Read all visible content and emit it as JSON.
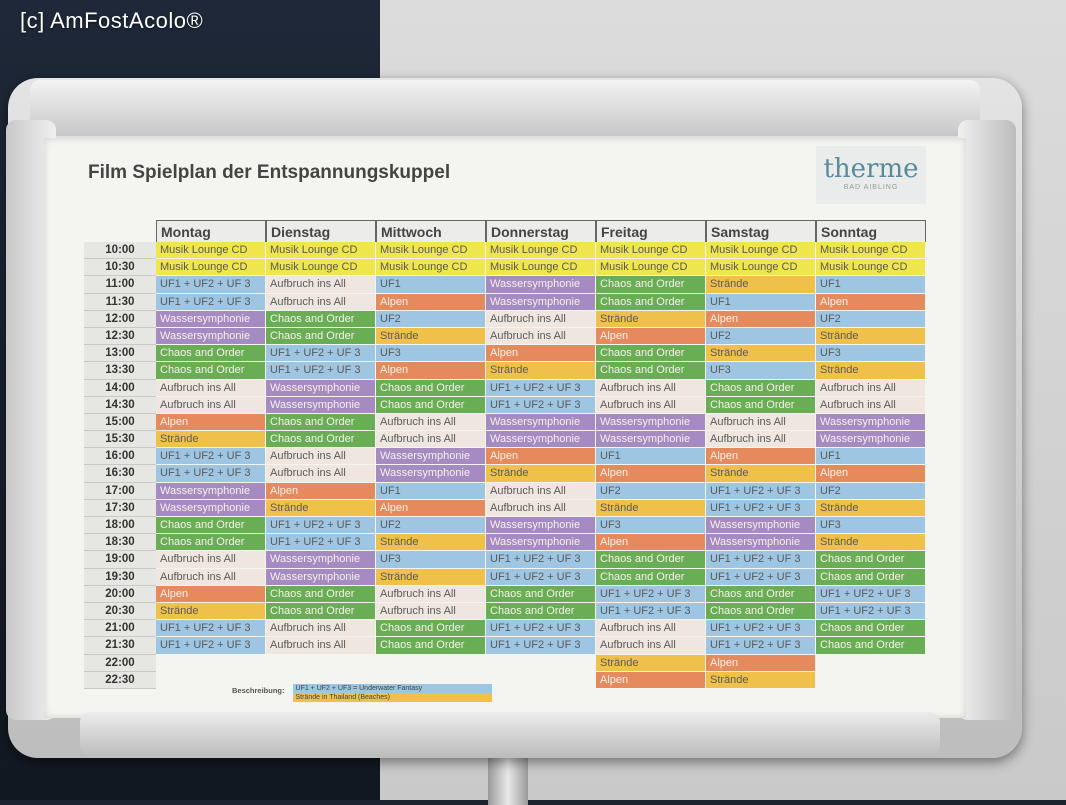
{
  "watermark": "[c] AmFostAcolo®",
  "sign": {
    "title": "Film Spielplan der Entspannungskuppel",
    "logo": "therme",
    "logo_sub": "BAD AIBLING"
  },
  "colors": {
    "yellow": "#eee64c",
    "blue": "#9ec6e2",
    "white": "#efe7df",
    "purple": "#a58bc2",
    "green": "#69ad55",
    "orange": "#e58a5c",
    "gold": "#f0c14a"
  },
  "days": [
    "Montag",
    "Dienstag",
    "Mittwoch",
    "Donnerstag",
    "Freitag",
    "Samstag",
    "Sonntag"
  ],
  "times": [
    "10:00",
    "10:30",
    "11:00",
    "11:30",
    "12:00",
    "12:30",
    "13:00",
    "13:30",
    "14:00",
    "14:30",
    "15:00",
    "15:30",
    "16:00",
    "16:30",
    "17:00",
    "17:30",
    "18:00",
    "18:30",
    "19:00",
    "19:30",
    "20:00",
    "20:30",
    "21:00",
    "21:30",
    "22:00",
    "22:30"
  ],
  "schedule": [
    [
      "Musik Lounge CD",
      "Musik Lounge CD",
      "Musik Lounge CD",
      "Musik Lounge CD",
      "Musik Lounge CD",
      "Musik Lounge CD",
      "Musik Lounge CD"
    ],
    [
      "Musik Lounge CD",
      "Musik Lounge CD",
      "Musik Lounge CD",
      "Musik Lounge CD",
      "Musik Lounge CD",
      "Musik Lounge CD",
      "Musik Lounge CD"
    ],
    [
      "UF1 + UF2 + UF 3",
      "Aufbruch ins All",
      "UF1",
      "Wassersymphonie",
      "Chaos and Order",
      "Strände",
      "UF1"
    ],
    [
      "UF1 + UF2 + UF 3",
      "Aufbruch ins All",
      "Alpen",
      "Wassersymphonie",
      "Chaos and Order",
      "UF1",
      "Alpen"
    ],
    [
      "Wassersymphonie",
      "Chaos and Order",
      "UF2",
      "Aufbruch ins All",
      "Strände",
      "Alpen",
      "UF2"
    ],
    [
      "Wassersymphonie",
      "Chaos and Order",
      "Strände",
      "Aufbruch ins All",
      "Alpen",
      "UF2",
      "Strände"
    ],
    [
      "Chaos and Order",
      "UF1 + UF2 + UF 3",
      "UF3",
      "Alpen",
      "Chaos and Order",
      "Strände",
      "UF3"
    ],
    [
      "Chaos and Order",
      "UF1 + UF2 + UF 3",
      "Alpen",
      "Strände",
      "Chaos and Order",
      "UF3",
      "Strände"
    ],
    [
      "Aufbruch ins All",
      "Wassersymphonie",
      "Chaos and Order",
      "UF1 + UF2 + UF 3",
      "Aufbruch ins All",
      "Chaos and Order",
      "Aufbruch ins All"
    ],
    [
      "Aufbruch ins All",
      "Wassersymphonie",
      "Chaos and Order",
      "UF1 + UF2 + UF 3",
      "Aufbruch ins All",
      "Chaos and Order",
      "Aufbruch ins All"
    ],
    [
      "Alpen",
      "Chaos and Order",
      "Aufbruch ins All",
      "Wassersymphonie",
      "Wassersymphonie",
      "Aufbruch ins All",
      "Wassersymphonie"
    ],
    [
      "Strände",
      "Chaos and Order",
      "Aufbruch ins All",
      "Wassersymphonie",
      "Wassersymphonie",
      "Aufbruch ins All",
      "Wassersymphonie"
    ],
    [
      "UF1 + UF2 + UF 3",
      "Aufbruch ins All",
      "Wassersymphonie",
      "Alpen",
      "UF1",
      "Alpen",
      "UF1"
    ],
    [
      "UF1 + UF2 + UF 3",
      "Aufbruch ins All",
      "Wassersymphonie",
      "Strände",
      "Alpen",
      "Strände",
      "Alpen"
    ],
    [
      "Wassersymphonie",
      "Alpen",
      "UF1",
      "Aufbruch ins All",
      "UF2",
      "UF1 + UF2 + UF 3",
      "UF2"
    ],
    [
      "Wassersymphonie",
      "Strände",
      "Alpen",
      "Aufbruch ins All",
      "Strände",
      "UF1 + UF2 + UF 3",
      "Strände"
    ],
    [
      "Chaos and Order",
      "UF1 + UF2 + UF 3",
      "UF2",
      "Wassersymphonie",
      "UF3",
      "Wassersymphonie",
      "UF3"
    ],
    [
      "Chaos and Order",
      "UF1 + UF2 + UF 3",
      "Strände",
      "Wassersymphonie",
      "Alpen",
      "Wassersymphonie",
      "Strände"
    ],
    [
      "Aufbruch ins All",
      "Wassersymphonie",
      "UF3",
      "UF1 + UF2 + UF 3",
      "Chaos and Order",
      "UF1 + UF2 + UF 3",
      "Chaos and Order"
    ],
    [
      "Aufbruch ins All",
      "Wassersymphonie",
      "Strände",
      "UF1 + UF2 + UF 3",
      "Chaos and Order",
      "UF1 + UF2 + UF 3",
      "Chaos and Order"
    ],
    [
      "Alpen",
      "Chaos and Order",
      "Aufbruch ins All",
      "Chaos and Order",
      "UF1 + UF2 + UF 3",
      "Chaos and Order",
      "UF1 + UF2 + UF 3"
    ],
    [
      "Strände",
      "Chaos and Order",
      "Aufbruch ins All",
      "Chaos and Order",
      "UF1 + UF2 + UF 3",
      "Chaos and Order",
      "UF1 + UF2 + UF 3"
    ],
    [
      "UF1 + UF2 + UF 3",
      "Aufbruch ins All",
      "Chaos and Order",
      "UF1 + UF2 + UF 3",
      "Aufbruch ins All",
      "UF1 + UF2 + UF 3",
      "Chaos and Order"
    ],
    [
      "UF1 + UF2 + UF 3",
      "Aufbruch ins All",
      "Chaos and Order",
      "UF1 + UF2 + UF 3",
      "Aufbruch ins All",
      "UF1 + UF2 + UF 3",
      "Chaos and Order"
    ],
    [
      "",
      "",
      "",
      "",
      "Strände",
      "Alpen",
      ""
    ],
    [
      "",
      "",
      "",
      "",
      "Alpen",
      "Strände",
      ""
    ]
  ],
  "legend": {
    "label": "Beschreibung:",
    "items": [
      {
        "text": "UF1 + UF2 + UF3 = Underwater Fantasy",
        "color": "blue"
      },
      {
        "text": "Strände in Thailand (Beaches)",
        "color": "gold"
      }
    ]
  }
}
